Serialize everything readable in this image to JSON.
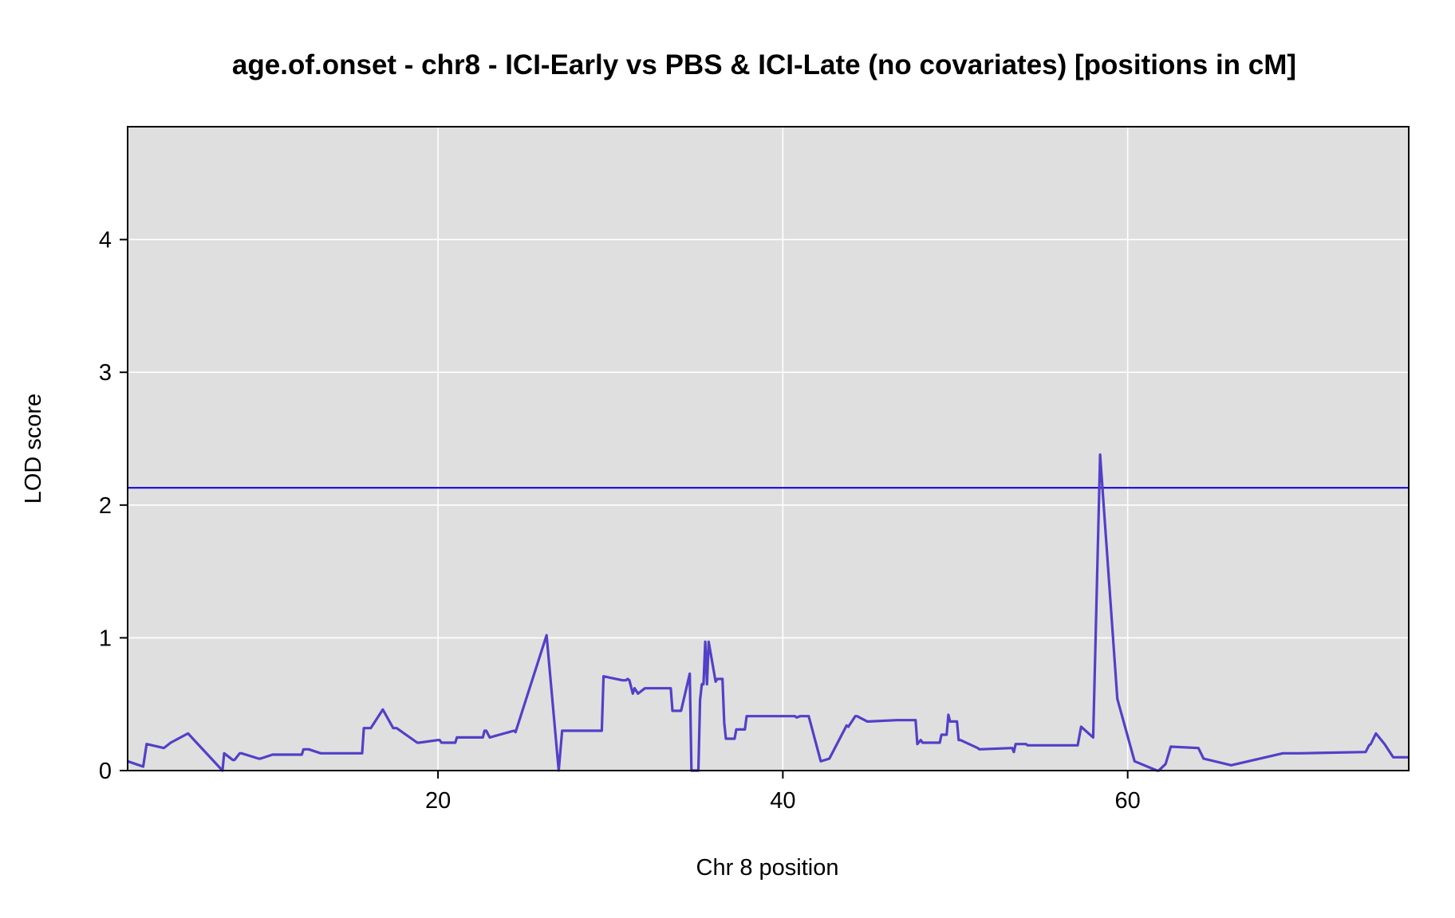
{
  "chart_data": {
    "type": "line",
    "title": "age.of.onset - chr8 - ICI-Early vs PBS & ICI-Late (no covariates) [positions in cM]",
    "xlabel": "Chr 8 position",
    "ylabel": "LOD score",
    "xlim": [
      2.0,
      76.3
    ],
    "ylim": [
      0,
      4.85
    ],
    "xticks": [
      20,
      40,
      60
    ],
    "yticks": [
      0,
      1,
      2,
      3,
      4
    ],
    "grid": true,
    "background": "#dfdfdf",
    "threshold": {
      "value": 2.13,
      "color": "#2a12e0"
    },
    "series": [
      {
        "color": "#5240c8",
        "x": [
          2.0,
          2.9,
          3.1,
          4.1,
          4.5,
          5.5,
          7.5,
          7.6,
          8.1,
          8.2,
          8.5,
          8.6,
          9.6,
          9.7,
          10.4,
          10.6,
          12.1,
          12.2,
          12.5,
          13.2,
          15.6,
          15.7,
          16.1,
          16.8,
          17.4,
          17.6,
          18.8,
          18.9,
          20.0,
          20.1,
          20.2,
          21.0,
          21.1,
          22.6,
          22.7,
          22.8,
          23.0,
          24.4,
          24.5,
          26.3,
          27.0,
          27.2,
          29.5,
          29.6,
          30.7,
          30.9,
          31.0,
          31.1,
          31.3,
          31.4,
          31.6,
          32.0,
          32.4,
          33.5,
          33.6,
          34.1,
          34.6,
          34.7,
          35.1,
          35.2,
          35.3,
          35.4,
          35.5,
          35.6,
          35.7,
          36.1,
          36.2,
          36.5,
          36.6,
          36.7,
          37.2,
          37.3,
          37.8,
          37.9,
          40.7,
          40.8,
          41.0,
          41.5,
          42.2,
          42.7,
          43.7,
          43.8,
          44.2,
          44.3,
          44.9,
          45.0,
          46.6,
          47.6,
          47.7,
          47.8,
          48.0,
          48.1,
          49.1,
          49.2,
          49.5,
          49.6,
          49.7,
          50.1,
          50.2,
          50.3,
          51.3,
          51.4,
          53.3,
          53.4,
          53.5,
          54.1,
          54.2,
          54.7,
          57.1,
          57.3,
          58.0,
          58.4,
          59.4,
          60.4,
          61.7,
          61.8,
          62.2,
          62.5,
          64.1,
          64.4,
          66.0,
          69.0,
          70.0,
          73.8,
          74.0,
          74.1,
          74.4,
          74.9,
          75.4,
          75.9,
          76.3
        ],
        "y": [
          0.07,
          0.03,
          0.2,
          0.17,
          0.21,
          0.28,
          0.0,
          0.13,
          0.08,
          0.08,
          0.13,
          0.13,
          0.09,
          0.09,
          0.12,
          0.12,
          0.12,
          0.16,
          0.16,
          0.13,
          0.13,
          0.32,
          0.32,
          0.46,
          0.32,
          0.32,
          0.21,
          0.21,
          0.23,
          0.23,
          0.21,
          0.21,
          0.25,
          0.25,
          0.3,
          0.3,
          0.25,
          0.3,
          0.29,
          1.02,
          0.0,
          0.3,
          0.3,
          0.71,
          0.68,
          0.68,
          0.69,
          0.68,
          0.58,
          0.62,
          0.58,
          0.62,
          0.62,
          0.62,
          0.45,
          0.45,
          0.73,
          0.0,
          0.0,
          0.53,
          0.65,
          0.65,
          0.97,
          0.65,
          0.97,
          0.67,
          0.69,
          0.69,
          0.36,
          0.24,
          0.24,
          0.31,
          0.31,
          0.41,
          0.41,
          0.4,
          0.41,
          0.41,
          0.07,
          0.09,
          0.34,
          0.33,
          0.41,
          0.41,
          0.37,
          0.37,
          0.38,
          0.38,
          0.38,
          0.2,
          0.23,
          0.21,
          0.21,
          0.27,
          0.27,
          0.42,
          0.37,
          0.37,
          0.23,
          0.23,
          0.17,
          0.16,
          0.17,
          0.14,
          0.2,
          0.2,
          0.19,
          0.19,
          0.19,
          0.33,
          0.25,
          2.38,
          0.54,
          0.07,
          0.0,
          0.0,
          0.05,
          0.18,
          0.17,
          0.09,
          0.04,
          0.13,
          0.13,
          0.14,
          0.19,
          0.2,
          0.28,
          0.2,
          0.1,
          0.1,
          0.1
        ]
      }
    ]
  }
}
